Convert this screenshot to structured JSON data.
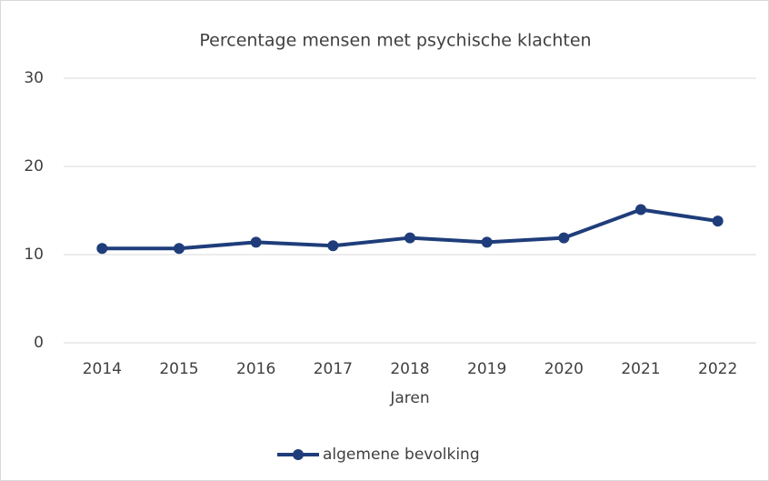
{
  "chart_data": {
    "type": "line",
    "title": "Percentage mensen met psychische klachten",
    "x_label": "Jaren",
    "categories": [
      "2014",
      "2015",
      "2016",
      "2017",
      "2018",
      "2019",
      "2020",
      "2021",
      "2022"
    ],
    "series": [
      {
        "name": "algemene bevolking",
        "color": "#1f3d7a",
        "values": [
          10.7,
          10.7,
          11.4,
          11.0,
          11.9,
          11.4,
          11.9,
          15.1,
          13.8
        ]
      }
    ],
    "ylim": [
      0,
      30
    ],
    "yticks": [
      0,
      10,
      20,
      30
    ],
    "grid": true,
    "legend": "bottom"
  }
}
